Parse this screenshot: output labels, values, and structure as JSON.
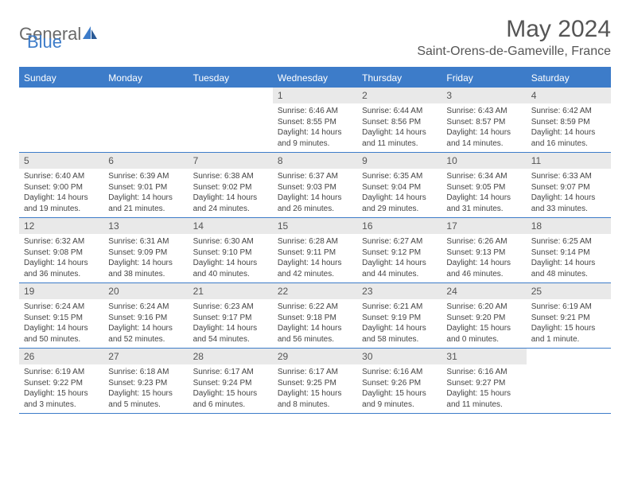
{
  "logo": {
    "general": "General",
    "blue": "Blue"
  },
  "title": "May 2024",
  "location": "Saint-Orens-de-Gameville, France",
  "colors": {
    "brand_blue": "#3d7cc9",
    "brand_gray": "#6a6a6a",
    "header_bg": "#3d7cc9",
    "daynum_bg": "#e9e9e9",
    "text": "#444444"
  },
  "weekdays": [
    "Sunday",
    "Monday",
    "Tuesday",
    "Wednesday",
    "Thursday",
    "Friday",
    "Saturday"
  ],
  "weeks": [
    [
      null,
      null,
      null,
      {
        "n": "1",
        "sr": "Sunrise: 6:46 AM",
        "ss": "Sunset: 8:55 PM",
        "dl1": "Daylight: 14 hours",
        "dl2": "and 9 minutes."
      },
      {
        "n": "2",
        "sr": "Sunrise: 6:44 AM",
        "ss": "Sunset: 8:56 PM",
        "dl1": "Daylight: 14 hours",
        "dl2": "and 11 minutes."
      },
      {
        "n": "3",
        "sr": "Sunrise: 6:43 AM",
        "ss": "Sunset: 8:57 PM",
        "dl1": "Daylight: 14 hours",
        "dl2": "and 14 minutes."
      },
      {
        "n": "4",
        "sr": "Sunrise: 6:42 AM",
        "ss": "Sunset: 8:59 PM",
        "dl1": "Daylight: 14 hours",
        "dl2": "and 16 minutes."
      }
    ],
    [
      {
        "n": "5",
        "sr": "Sunrise: 6:40 AM",
        "ss": "Sunset: 9:00 PM",
        "dl1": "Daylight: 14 hours",
        "dl2": "and 19 minutes."
      },
      {
        "n": "6",
        "sr": "Sunrise: 6:39 AM",
        "ss": "Sunset: 9:01 PM",
        "dl1": "Daylight: 14 hours",
        "dl2": "and 21 minutes."
      },
      {
        "n": "7",
        "sr": "Sunrise: 6:38 AM",
        "ss": "Sunset: 9:02 PM",
        "dl1": "Daylight: 14 hours",
        "dl2": "and 24 minutes."
      },
      {
        "n": "8",
        "sr": "Sunrise: 6:37 AM",
        "ss": "Sunset: 9:03 PM",
        "dl1": "Daylight: 14 hours",
        "dl2": "and 26 minutes."
      },
      {
        "n": "9",
        "sr": "Sunrise: 6:35 AM",
        "ss": "Sunset: 9:04 PM",
        "dl1": "Daylight: 14 hours",
        "dl2": "and 29 minutes."
      },
      {
        "n": "10",
        "sr": "Sunrise: 6:34 AM",
        "ss": "Sunset: 9:05 PM",
        "dl1": "Daylight: 14 hours",
        "dl2": "and 31 minutes."
      },
      {
        "n": "11",
        "sr": "Sunrise: 6:33 AM",
        "ss": "Sunset: 9:07 PM",
        "dl1": "Daylight: 14 hours",
        "dl2": "and 33 minutes."
      }
    ],
    [
      {
        "n": "12",
        "sr": "Sunrise: 6:32 AM",
        "ss": "Sunset: 9:08 PM",
        "dl1": "Daylight: 14 hours",
        "dl2": "and 36 minutes."
      },
      {
        "n": "13",
        "sr": "Sunrise: 6:31 AM",
        "ss": "Sunset: 9:09 PM",
        "dl1": "Daylight: 14 hours",
        "dl2": "and 38 minutes."
      },
      {
        "n": "14",
        "sr": "Sunrise: 6:30 AM",
        "ss": "Sunset: 9:10 PM",
        "dl1": "Daylight: 14 hours",
        "dl2": "and 40 minutes."
      },
      {
        "n": "15",
        "sr": "Sunrise: 6:28 AM",
        "ss": "Sunset: 9:11 PM",
        "dl1": "Daylight: 14 hours",
        "dl2": "and 42 minutes."
      },
      {
        "n": "16",
        "sr": "Sunrise: 6:27 AM",
        "ss": "Sunset: 9:12 PM",
        "dl1": "Daylight: 14 hours",
        "dl2": "and 44 minutes."
      },
      {
        "n": "17",
        "sr": "Sunrise: 6:26 AM",
        "ss": "Sunset: 9:13 PM",
        "dl1": "Daylight: 14 hours",
        "dl2": "and 46 minutes."
      },
      {
        "n": "18",
        "sr": "Sunrise: 6:25 AM",
        "ss": "Sunset: 9:14 PM",
        "dl1": "Daylight: 14 hours",
        "dl2": "and 48 minutes."
      }
    ],
    [
      {
        "n": "19",
        "sr": "Sunrise: 6:24 AM",
        "ss": "Sunset: 9:15 PM",
        "dl1": "Daylight: 14 hours",
        "dl2": "and 50 minutes."
      },
      {
        "n": "20",
        "sr": "Sunrise: 6:24 AM",
        "ss": "Sunset: 9:16 PM",
        "dl1": "Daylight: 14 hours",
        "dl2": "and 52 minutes."
      },
      {
        "n": "21",
        "sr": "Sunrise: 6:23 AM",
        "ss": "Sunset: 9:17 PM",
        "dl1": "Daylight: 14 hours",
        "dl2": "and 54 minutes."
      },
      {
        "n": "22",
        "sr": "Sunrise: 6:22 AM",
        "ss": "Sunset: 9:18 PM",
        "dl1": "Daylight: 14 hours",
        "dl2": "and 56 minutes."
      },
      {
        "n": "23",
        "sr": "Sunrise: 6:21 AM",
        "ss": "Sunset: 9:19 PM",
        "dl1": "Daylight: 14 hours",
        "dl2": "and 58 minutes."
      },
      {
        "n": "24",
        "sr": "Sunrise: 6:20 AM",
        "ss": "Sunset: 9:20 PM",
        "dl1": "Daylight: 15 hours",
        "dl2": "and 0 minutes."
      },
      {
        "n": "25",
        "sr": "Sunrise: 6:19 AM",
        "ss": "Sunset: 9:21 PM",
        "dl1": "Daylight: 15 hours",
        "dl2": "and 1 minute."
      }
    ],
    [
      {
        "n": "26",
        "sr": "Sunrise: 6:19 AM",
        "ss": "Sunset: 9:22 PM",
        "dl1": "Daylight: 15 hours",
        "dl2": "and 3 minutes."
      },
      {
        "n": "27",
        "sr": "Sunrise: 6:18 AM",
        "ss": "Sunset: 9:23 PM",
        "dl1": "Daylight: 15 hours",
        "dl2": "and 5 minutes."
      },
      {
        "n": "28",
        "sr": "Sunrise: 6:17 AM",
        "ss": "Sunset: 9:24 PM",
        "dl1": "Daylight: 15 hours",
        "dl2": "and 6 minutes."
      },
      {
        "n": "29",
        "sr": "Sunrise: 6:17 AM",
        "ss": "Sunset: 9:25 PM",
        "dl1": "Daylight: 15 hours",
        "dl2": "and 8 minutes."
      },
      {
        "n": "30",
        "sr": "Sunrise: 6:16 AM",
        "ss": "Sunset: 9:26 PM",
        "dl1": "Daylight: 15 hours",
        "dl2": "and 9 minutes."
      },
      {
        "n": "31",
        "sr": "Sunrise: 6:16 AM",
        "ss": "Sunset: 9:27 PM",
        "dl1": "Daylight: 15 hours",
        "dl2": "and 11 minutes."
      },
      null
    ]
  ]
}
